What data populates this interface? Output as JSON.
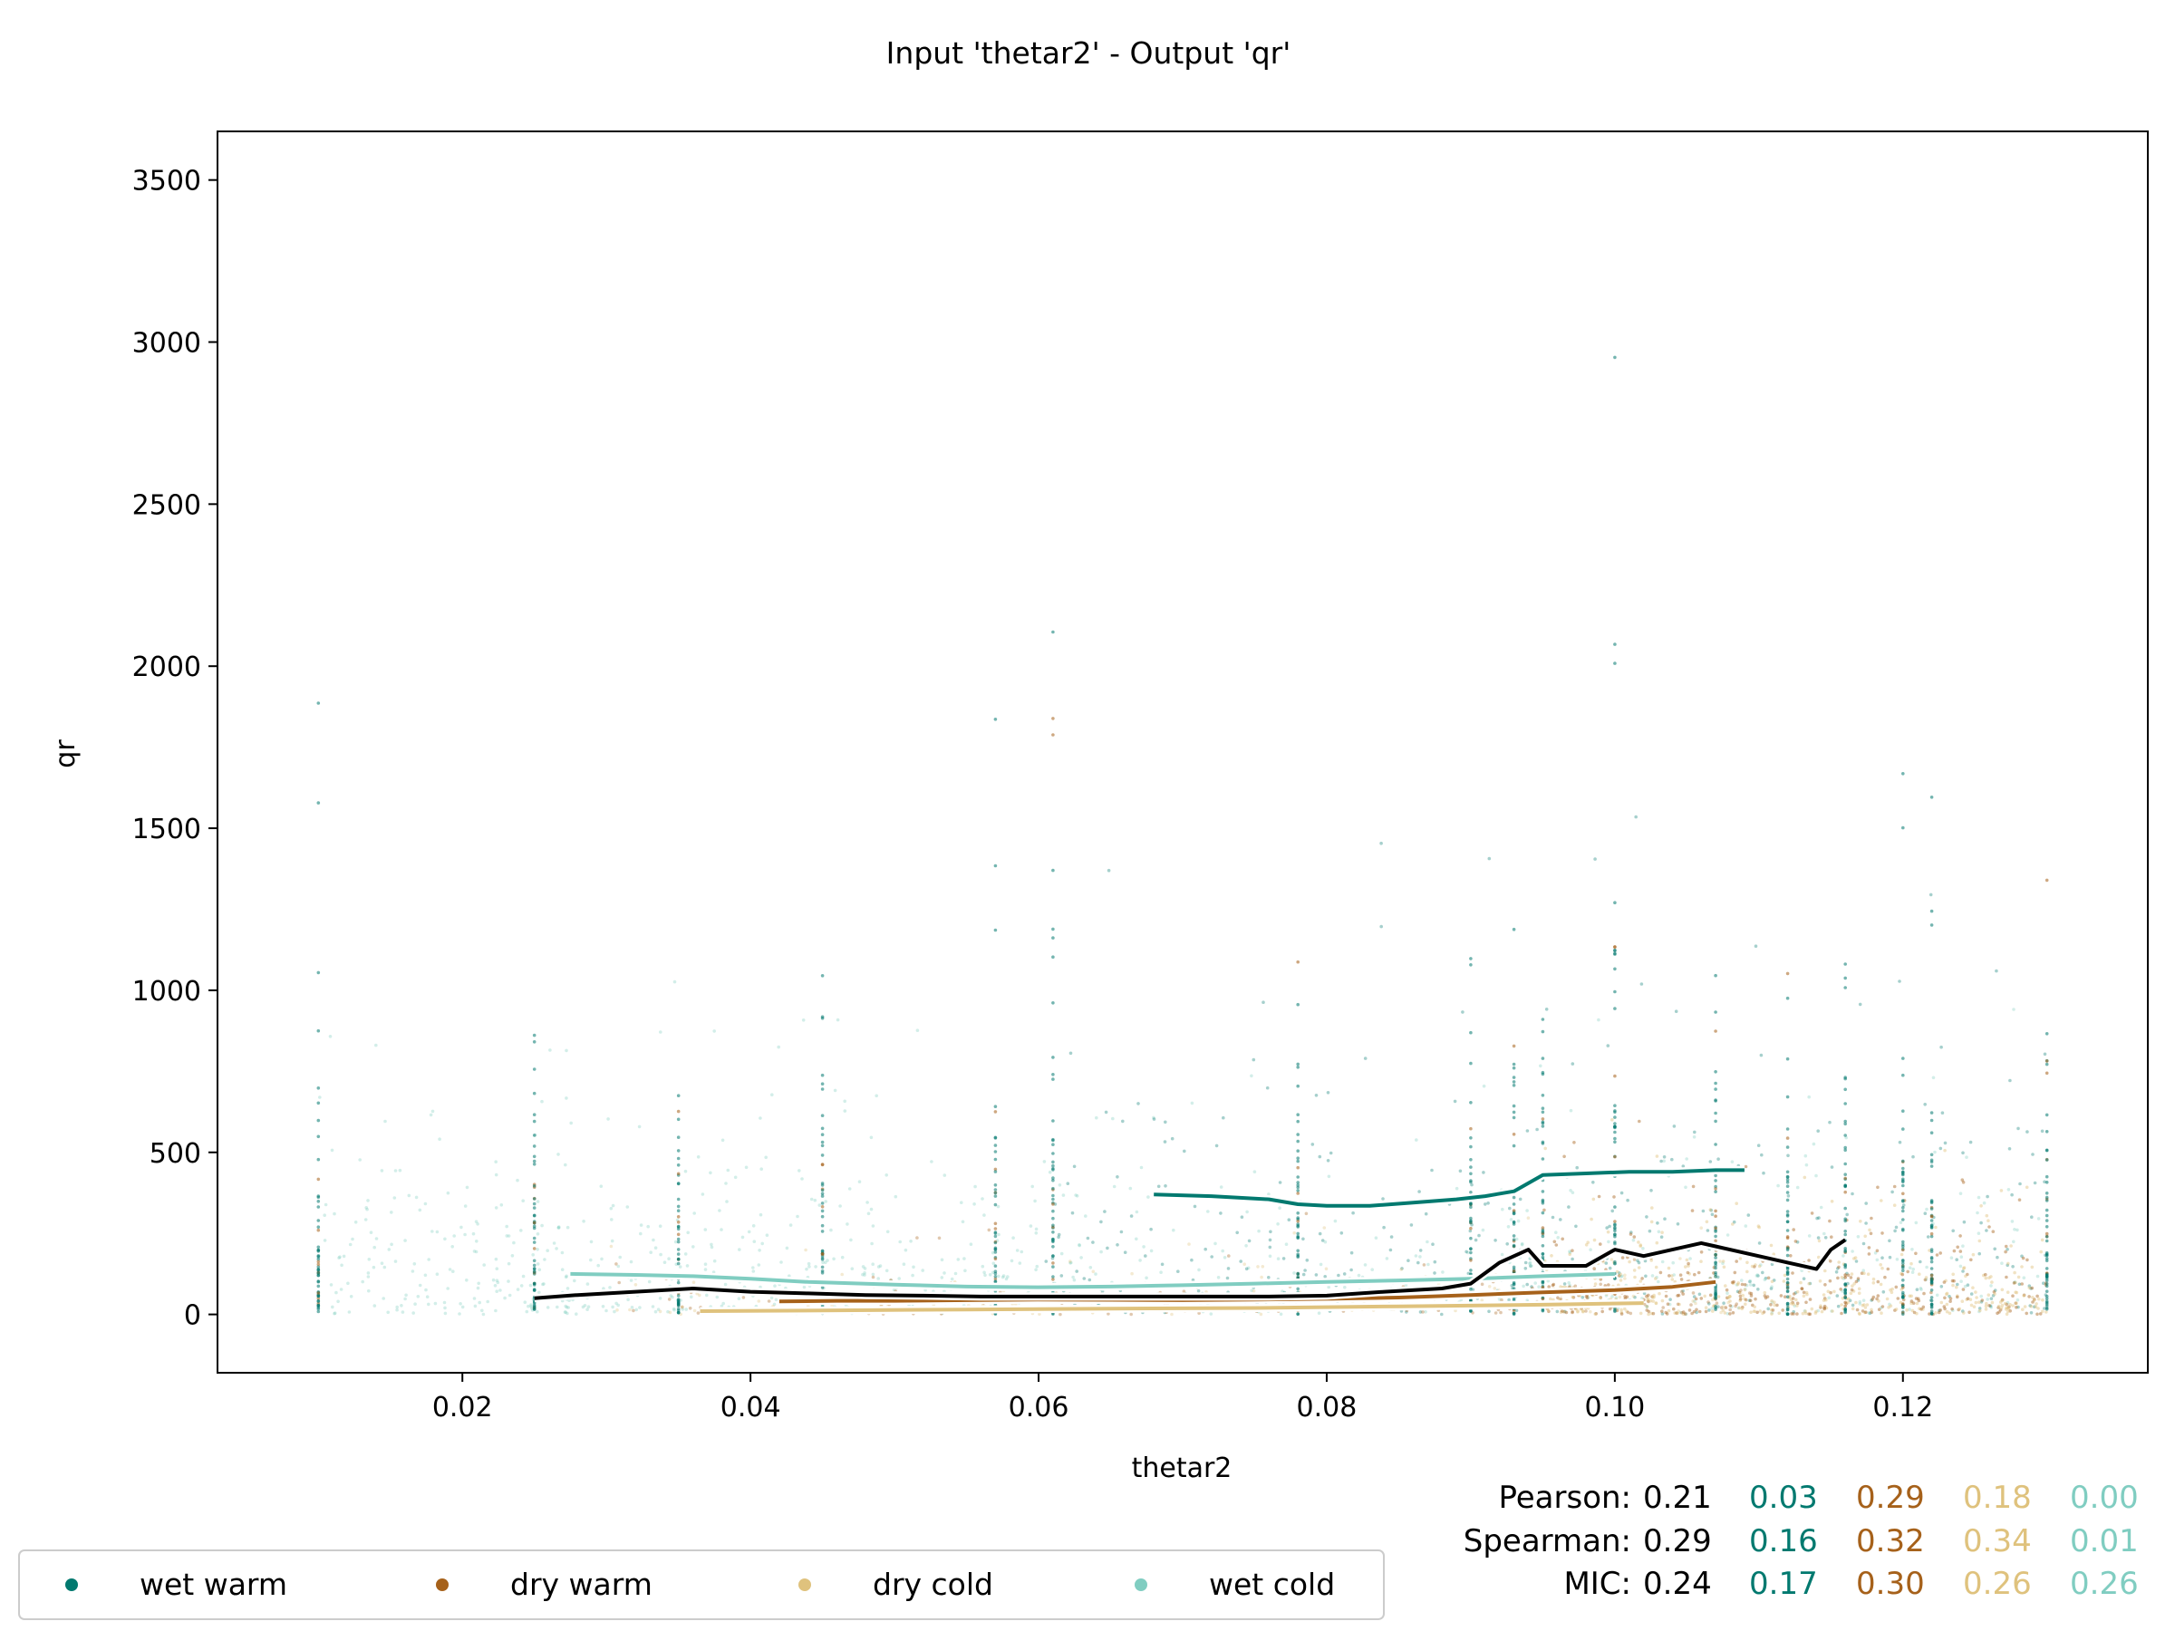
{
  "chart_data": {
    "type": "scatter",
    "title": "Input 'thetar2' - Output 'qr'",
    "xlabel": "thetar2",
    "ylabel": "qr",
    "xlim": [
      0.003,
      0.137
    ],
    "ylim": [
      -180,
      3650
    ],
    "xticks": [
      0.02,
      0.04,
      0.06,
      0.08,
      0.1,
      0.12
    ],
    "xtick_labels": [
      "0.02",
      "0.04",
      "0.06",
      "0.08",
      "0.10",
      "0.12"
    ],
    "yticks": [
      0,
      500,
      1000,
      1500,
      2000,
      2500,
      3000,
      3500
    ],
    "ytick_labels": [
      "0",
      "500",
      "1000",
      "1500",
      "2000",
      "2500",
      "3000",
      "3500"
    ],
    "grid": false,
    "legend_position": "bottom-left",
    "series": [
      {
        "name": "wet warm",
        "color": "#01796f",
        "trend": {
          "x": [
            0.068,
            0.072,
            0.076,
            0.078,
            0.08,
            0.083,
            0.086,
            0.089,
            0.091,
            0.093,
            0.095,
            0.098,
            0.101,
            0.104,
            0.107,
            0.109
          ],
          "y": [
            370,
            365,
            355,
            340,
            335,
            335,
            345,
            355,
            365,
            380,
            430,
            435,
            440,
            440,
            445,
            445
          ]
        }
      },
      {
        "name": "dry warm",
        "color": "#a6611a",
        "trend": {
          "x": [
            0.042,
            0.046,
            0.05,
            0.055,
            0.06,
            0.065,
            0.07,
            0.075,
            0.08,
            0.085,
            0.09,
            0.095,
            0.1,
            0.104,
            0.107
          ],
          "y": [
            40,
            42,
            42,
            44,
            46,
            45,
            44,
            46,
            48,
            52,
            60,
            68,
            75,
            85,
            100
          ]
        }
      },
      {
        "name": "dry cold",
        "color": "#dfc27d",
        "trend": {
          "x": [
            0.0365,
            0.045,
            0.055,
            0.065,
            0.075,
            0.085,
            0.095,
            0.102
          ],
          "y": [
            10,
            12,
            15,
            18,
            20,
            25,
            30,
            35
          ]
        }
      },
      {
        "name": "wet cold",
        "color": "#80cdc1",
        "trend": {
          "x": [
            0.0275,
            0.032,
            0.036,
            0.04,
            0.044,
            0.05,
            0.055,
            0.06,
            0.065,
            0.07,
            0.075,
            0.08,
            0.085,
            0.09,
            0.095,
            0.1
          ],
          "y": [
            125,
            122,
            118,
            110,
            100,
            92,
            86,
            84,
            86,
            90,
            95,
            100,
            105,
            110,
            118,
            125
          ]
        }
      }
    ],
    "overall_trend": {
      "color": "#000000",
      "x": [
        0.025,
        0.028,
        0.032,
        0.036,
        0.04,
        0.044,
        0.048,
        0.052,
        0.056,
        0.06,
        0.064,
        0.068,
        0.072,
        0.076,
        0.08,
        0.084,
        0.088,
        0.09,
        0.092,
        0.094,
        0.095,
        0.098,
        0.1,
        0.102,
        0.104,
        0.106,
        0.107,
        0.109,
        0.112,
        0.114,
        0.115,
        0.116
      ],
      "y": [
        50,
        60,
        70,
        80,
        70,
        65,
        60,
        58,
        55,
        55,
        55,
        55,
        55,
        55,
        58,
        70,
        80,
        95,
        160,
        200,
        150,
        150,
        200,
        180,
        200,
        220,
        210,
        190,
        160,
        140,
        200,
        230
      ]
    },
    "stats": {
      "labels": [
        "Pearson:",
        "Spearman:",
        "MIC:"
      ],
      "overall": [
        "0.21",
        "0.29",
        "0.24"
      ],
      "wet_warm": [
        "0.03",
        "0.16",
        "0.17"
      ],
      "dry_warm": [
        "0.29",
        "0.32",
        "0.30"
      ],
      "dry_cold": [
        "0.18",
        "0.34",
        "0.26"
      ],
      "wet_cold": [
        "0.00",
        "0.01",
        "0.26"
      ]
    }
  }
}
